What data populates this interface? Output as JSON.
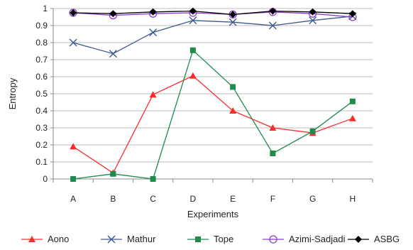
{
  "chart_data": {
    "type": "line",
    "title": "",
    "xlabel": "Experiments",
    "ylabel": "Entropy",
    "categories": [
      "A",
      "B",
      "C",
      "D",
      "E",
      "F",
      "G",
      "H"
    ],
    "ylim": [
      0,
      1
    ],
    "yticks": [
      "0",
      "0.1",
      "0.2",
      "0.3",
      "0.4",
      "0.5",
      "0.6",
      "0.7",
      "0.8",
      "0.9",
      "1"
    ],
    "grid": "horizontal",
    "legend_position": "bottom",
    "series": [
      {
        "name": "Aono",
        "color": "#ff2b2b",
        "marker": "triangle",
        "values": [
          0.19,
          0.035,
          0.495,
          0.605,
          0.4,
          0.3,
          0.27,
          0.355
        ]
      },
      {
        "name": "Mathur",
        "color": "#3c5a8c",
        "marker": "x",
        "values": [
          0.8,
          0.735,
          0.86,
          0.93,
          0.92,
          0.9,
          0.93,
          0.955
        ]
      },
      {
        "name": "Tope",
        "color": "#1f8a4c",
        "marker": "square",
        "values": [
          0.0,
          0.03,
          0.0,
          0.755,
          0.54,
          0.15,
          0.28,
          0.455
        ]
      },
      {
        "name": "Azimi-Sadjadi",
        "color": "#8a3cc8",
        "marker": "circle",
        "values": [
          0.975,
          0.96,
          0.97,
          0.975,
          0.965,
          0.98,
          0.97,
          0.95
        ]
      },
      {
        "name": "ASBG",
        "color": "#000000",
        "marker": "diamond",
        "values": [
          0.975,
          0.97,
          0.98,
          0.985,
          0.965,
          0.985,
          0.98,
          0.97
        ]
      }
    ]
  }
}
